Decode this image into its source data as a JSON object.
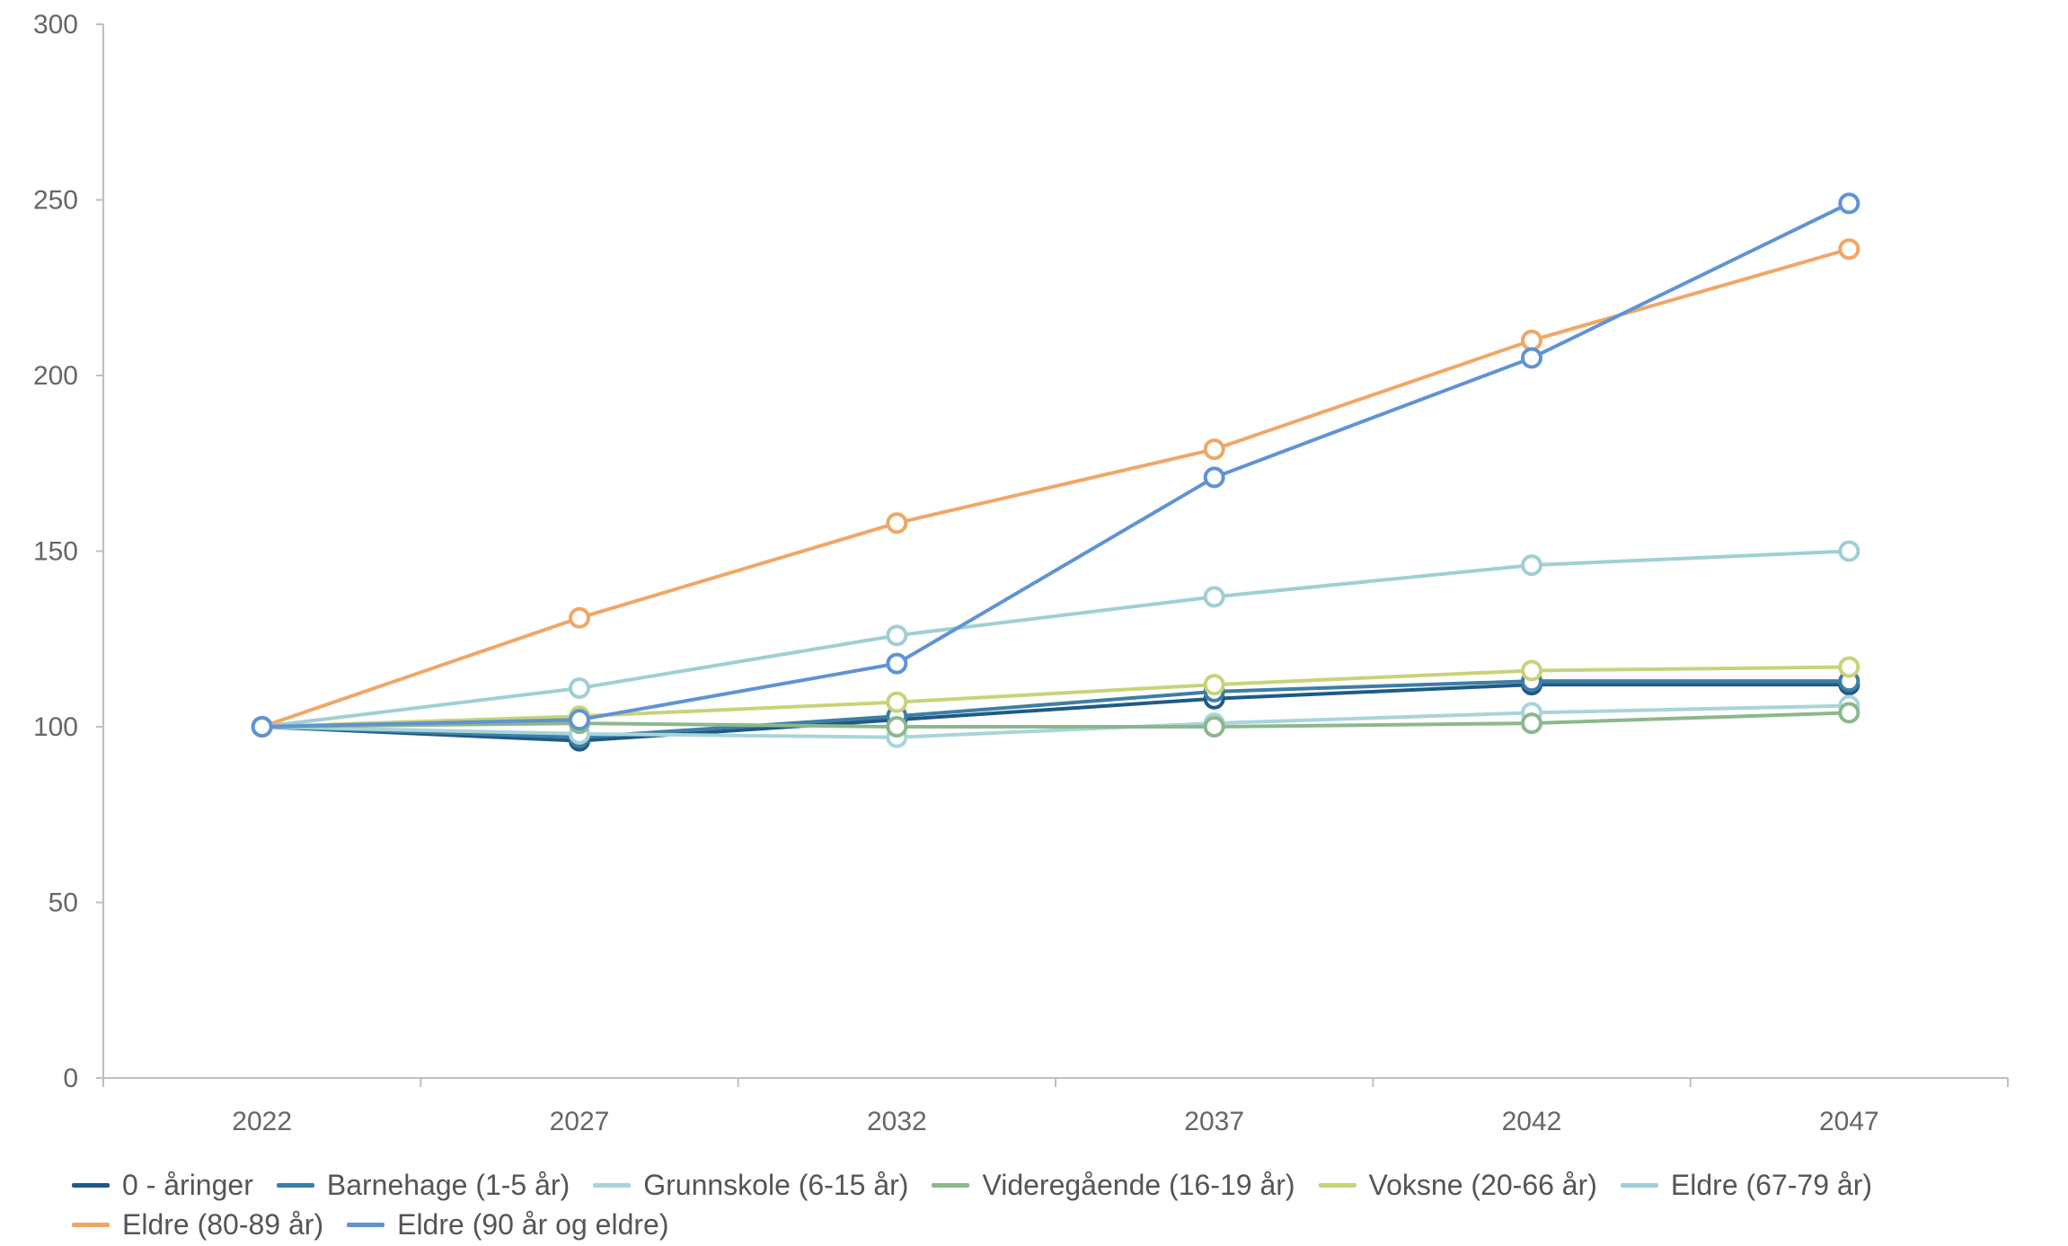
{
  "chart_data": {
    "type": "line",
    "categories": [
      "2022",
      "2027",
      "2032",
      "2037",
      "2042",
      "2047"
    ],
    "ylim": [
      0,
      300
    ],
    "yticks": [
      "0",
      "50",
      "100",
      "150",
      "200",
      "250",
      "300"
    ],
    "grid": false,
    "legend_position": "bottom",
    "series": [
      {
        "name": "0 - åringer",
        "color": "#1f5a85",
        "values": [
          100,
          96,
          102,
          108,
          112,
          112
        ]
      },
      {
        "name": "Barnehage (1-5 år)",
        "color": "#3d7ea6",
        "values": [
          100,
          97,
          103,
          110,
          113,
          113
        ]
      },
      {
        "name": "Grunnskole (6-15 år)",
        "color": "#a9d4d9",
        "values": [
          100,
          98,
          97,
          101,
          104,
          106
        ]
      },
      {
        "name": "Videregående (16-19 år)",
        "color": "#8bb88c",
        "values": [
          100,
          101,
          100,
          100,
          101,
          104
        ]
      },
      {
        "name": "Voksne (20-66 år)",
        "color": "#c9d27a",
        "values": [
          100,
          103,
          107,
          112,
          116,
          117
        ]
      },
      {
        "name": "Eldre (67-79 år)",
        "color": "#9fcfd3",
        "values": [
          100,
          111,
          126,
          137,
          146,
          150
        ]
      },
      {
        "name": "Eldre (80-89 år)",
        "color": "#f0a766",
        "values": [
          100,
          131,
          158,
          179,
          210,
          236
        ]
      },
      {
        "name": "Eldre (90 år og eldre)",
        "color": "#5f93d3",
        "values": [
          100,
          102,
          118,
          171,
          205,
          249
        ]
      }
    ]
  }
}
